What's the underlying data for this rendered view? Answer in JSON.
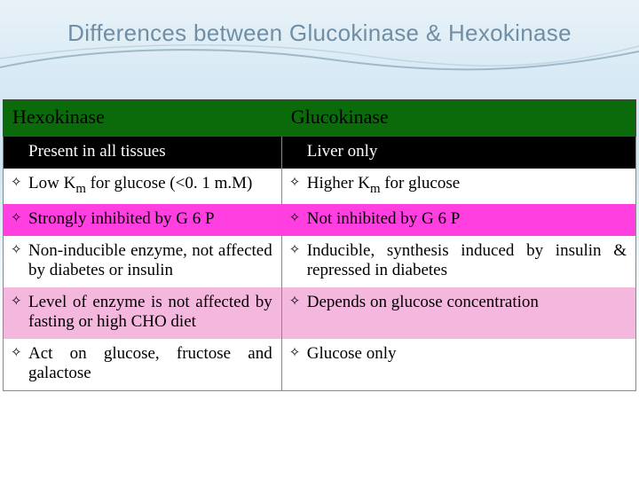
{
  "title": "Differences between Glucokinase & Hexokinase",
  "title_color": "#6f8fa6",
  "header": {
    "left": "Hexokinase",
    "right": "Glucokinase",
    "bg": "#0b6b0b",
    "fg": "#000000"
  },
  "rows": [
    {
      "bg": "#000000",
      "fg": "#ffffff",
      "bullet_left": false,
      "bullet_right": false,
      "left_html": "Present in all tissues",
      "right_html": "Liver only"
    },
    {
      "bg": "#ffffff",
      "fg": "#000000",
      "bullet_left": true,
      "bullet_right": true,
      "left_html": "Low K<span class=\"sub\">m</span> for glucose (&lt;0. 1 m.M)",
      "right_html": "Higher K<span class=\"sub\">m</span> for glucose"
    },
    {
      "bg": "#ff3fe0",
      "fg": "#000000",
      "bullet_left": true,
      "bullet_right": true,
      "left_html": "Strongly inhibited by G 6 P",
      "right_html": "Not inhibited by G 6 P"
    },
    {
      "bg": "#ffffff",
      "fg": "#000000",
      "bullet_left": true,
      "bullet_right": true,
      "left_html": "Non-inducible enzyme, not affected by diabetes or insulin",
      "right_html": "Inducible, synthesis induced by insulin & repressed in diabetes"
    },
    {
      "bg": "#f4b7dd",
      "fg": "#000000",
      "bullet_left": true,
      "bullet_right": true,
      "left_html": "Level of enzyme is not affected  by fasting or high CHO diet",
      "right_html": "Depends on glucose concentration"
    },
    {
      "bg": "#ffffff",
      "fg": "#000000",
      "bullet_left": true,
      "bullet_right": true,
      "left_html": "Act on glucose, fructose and galactose",
      "right_html": "Glucose only"
    }
  ],
  "wave_stroke": "#9fb9c9"
}
